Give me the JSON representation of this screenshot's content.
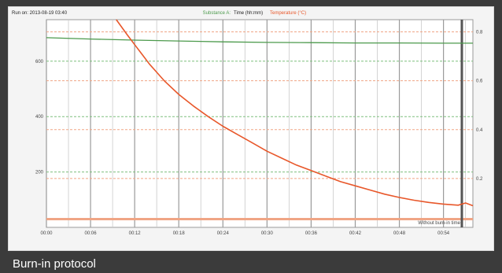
{
  "caption": "Burn-in protocol",
  "header": {
    "left_label": "Run on: 2013-08-19 03:40",
    "legend_prefix": "Substance A:",
    "legend_series_1": "Time (hh:mm)",
    "legend_series_2": "Temperature (°C)"
  },
  "colors": {
    "background_frame": "#3b3b3b",
    "panel": "#f4f4f4",
    "plot_bg": "#ffffff",
    "orange": "#e8572a",
    "green": "#4c9a4c",
    "grid_vertical": "#9a9a9a",
    "grid_green": "#7fbf7f",
    "grid_orange": "#f0a585"
  },
  "marker_label": "Without burn-in time",
  "chart_data": {
    "type": "line",
    "title": "",
    "xlabel": "",
    "ylabel": "",
    "x_ticks": [
      "00:00",
      "00:06",
      "00:12",
      "00:18",
      "00:24",
      "00:30",
      "00:36",
      "00:42",
      "00:48",
      "00:54"
    ],
    "xlim": [
      0,
      58
    ],
    "y_left_ticks": [
      200,
      400,
      600
    ],
    "y_left_lim": [
      0,
      750
    ],
    "y_right_ticks": [
      0.2,
      0.4,
      0.6,
      0.8
    ],
    "y_right_lim": [
      0,
      0.85
    ],
    "grid": true,
    "legend_position": "top-center",
    "marker_x": 56.5,
    "series": [
      {
        "name": "Substance A:",
        "color": "#4c9a4c",
        "axis": "left",
        "x": [
          0,
          6,
          12,
          18,
          24,
          30,
          36,
          42,
          48,
          54,
          58
        ],
        "y": [
          685,
          680,
          676,
          673,
          670,
          668,
          667,
          666,
          666,
          665,
          665
        ]
      },
      {
        "name": "Temperature (°C)",
        "color": "#e8572a",
        "axis": "left",
        "x": [
          9.5,
          11,
          12,
          13,
          14,
          15,
          16,
          18,
          20,
          22,
          24,
          26,
          28,
          30,
          32,
          34,
          36,
          38,
          40,
          42,
          44,
          46,
          48,
          50,
          52,
          54,
          56,
          57,
          58
        ],
        "y": [
          750,
          695,
          660,
          625,
          590,
          560,
          530,
          480,
          438,
          400,
          365,
          335,
          305,
          275,
          250,
          225,
          205,
          185,
          165,
          150,
          135,
          120,
          108,
          98,
          90,
          84,
          80,
          88,
          78
        ]
      }
    ],
    "h_lines_left_green": [
      200,
      400,
      600,
      30
    ],
    "h_lines_right_orange": [
      0.2,
      0.4,
      0.6,
      0.8
    ]
  }
}
